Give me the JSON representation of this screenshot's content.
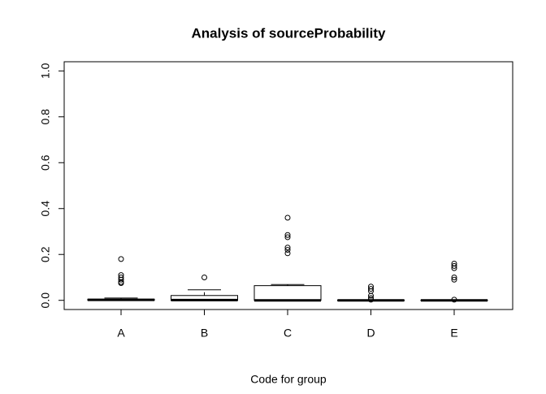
{
  "chart_data": {
    "type": "box",
    "title": "Analysis of sourceProbability",
    "x_label": "Code for group",
    "categories": [
      "A",
      "B",
      "C",
      "D",
      "E"
    ],
    "boxes": [
      {
        "min": 0,
        "q1": 0,
        "median": 0.002,
        "q3": 0.005,
        "max": 0.01,
        "outliers": [
          0.18,
          0.11,
          0.1,
          0.09,
          0.08,
          0.075
        ]
      },
      {
        "min": 0,
        "q1": 0,
        "median": 0.001,
        "q3": 0.021,
        "max": 0.046,
        "outliers": [
          0.1
        ]
      },
      {
        "min": 0,
        "q1": 0,
        "median": 0,
        "q3": 0.064,
        "max": 0.069,
        "outliers": [
          0.36,
          0.285,
          0.275,
          0.23,
          0.22,
          0.205
        ]
      },
      {
        "min": 0,
        "q1": 0,
        "median": 0,
        "q3": 0.001,
        "max": 0.002,
        "outliers": [
          0.06,
          0.05,
          0.04,
          0.02,
          0.01,
          0.003
        ]
      },
      {
        "min": 0,
        "q1": 0,
        "median": 0,
        "q3": 0.001,
        "max": 0.002,
        "outliers": [
          0.16,
          0.15,
          0.14,
          0.1,
          0.09,
          0.003
        ]
      }
    ],
    "color": "#000000",
    "ylim": [
      -0.04,
      1.04
    ],
    "yticks": [
      {
        "value": 0,
        "label": "0.0"
      },
      0.2,
      0.4,
      0.6,
      0.8,
      {
        "value": 1,
        "label": "1.0"
      }
    ]
  }
}
